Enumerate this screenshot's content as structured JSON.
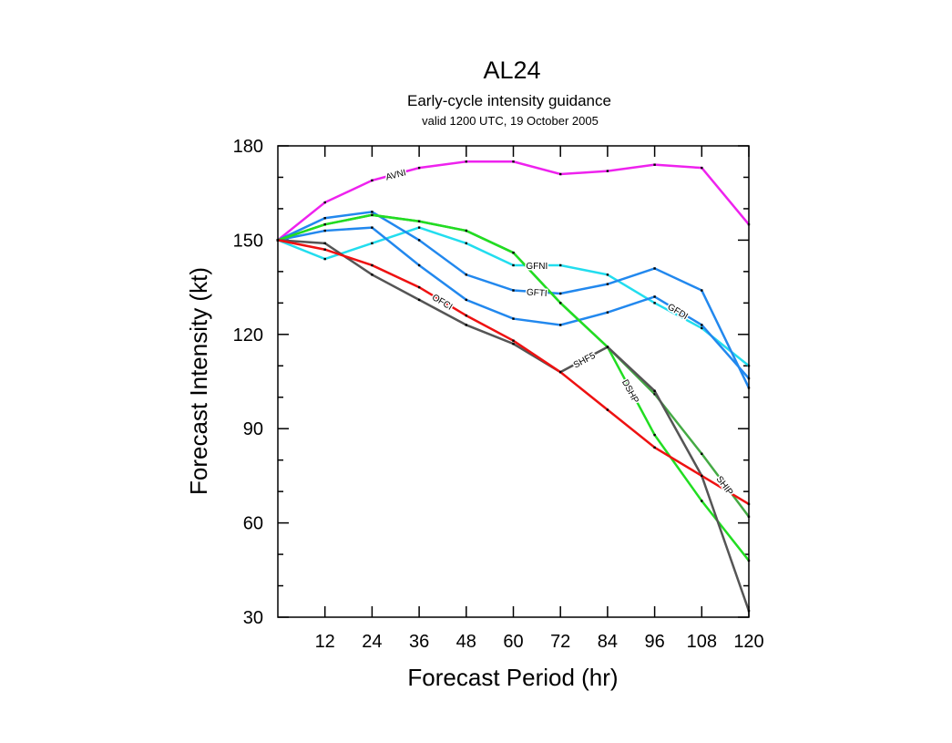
{
  "chart_data": {
    "type": "line",
    "title": "AL24",
    "subtitle": "Early-cycle intensity guidance",
    "subtitle2": "valid 1200 UTC, 19 October 2005",
    "xlabel": "Forecast Period (hr)",
    "ylabel": "Forecast Intensity (kt)",
    "xlim": [
      0,
      120
    ],
    "ylim": [
      30,
      180
    ],
    "x": [
      0,
      12,
      24,
      36,
      48,
      60,
      72,
      84,
      96,
      108,
      120
    ],
    "xticks": [
      "12",
      "24",
      "36",
      "48",
      "60",
      "72",
      "84",
      "96",
      "108",
      "120"
    ],
    "yticks": [
      "30",
      "60",
      "90",
      "120",
      "150",
      "180"
    ],
    "grid": false,
    "series": [
      {
        "name": "AVNI",
        "color": "#ee22ee",
        "values": [
          150,
          162,
          169,
          173,
          175,
          175,
          171,
          172,
          174,
          173,
          155
        ]
      },
      {
        "name": "GFNI",
        "color": "#22ddee",
        "values": [
          150,
          144,
          149,
          154,
          149,
          142,
          142,
          139,
          130,
          122,
          110
        ]
      },
      {
        "name": "GFTI",
        "color": "#2288ee",
        "values": [
          150,
          157,
          159,
          150,
          139,
          134,
          133,
          136,
          141,
          134,
          103
        ]
      },
      {
        "name": "GFDI",
        "color": "#2288ee",
        "values": [
          150,
          153,
          154,
          142,
          131,
          125,
          123,
          127,
          132,
          123,
          106
        ]
      },
      {
        "name": "SHIP",
        "color": "#44aa44",
        "values": [
          150,
          155,
          158,
          156,
          153,
          146,
          130,
          116,
          101,
          82,
          62
        ]
      },
      {
        "name": "DSHP",
        "color": "#22dd22",
        "values": [
          150,
          155,
          158,
          156,
          153,
          146,
          130,
          116,
          88,
          67,
          48
        ]
      },
      {
        "name": "SHF5",
        "color": "#555555",
        "values": [
          150,
          149,
          139,
          131,
          123,
          117,
          108,
          116,
          102,
          75,
          32
        ]
      },
      {
        "name": "OFCI",
        "color": "#ee1111",
        "values": [
          150,
          147,
          142,
          135,
          126,
          118,
          108,
          96,
          84,
          75,
          66
        ]
      }
    ]
  }
}
